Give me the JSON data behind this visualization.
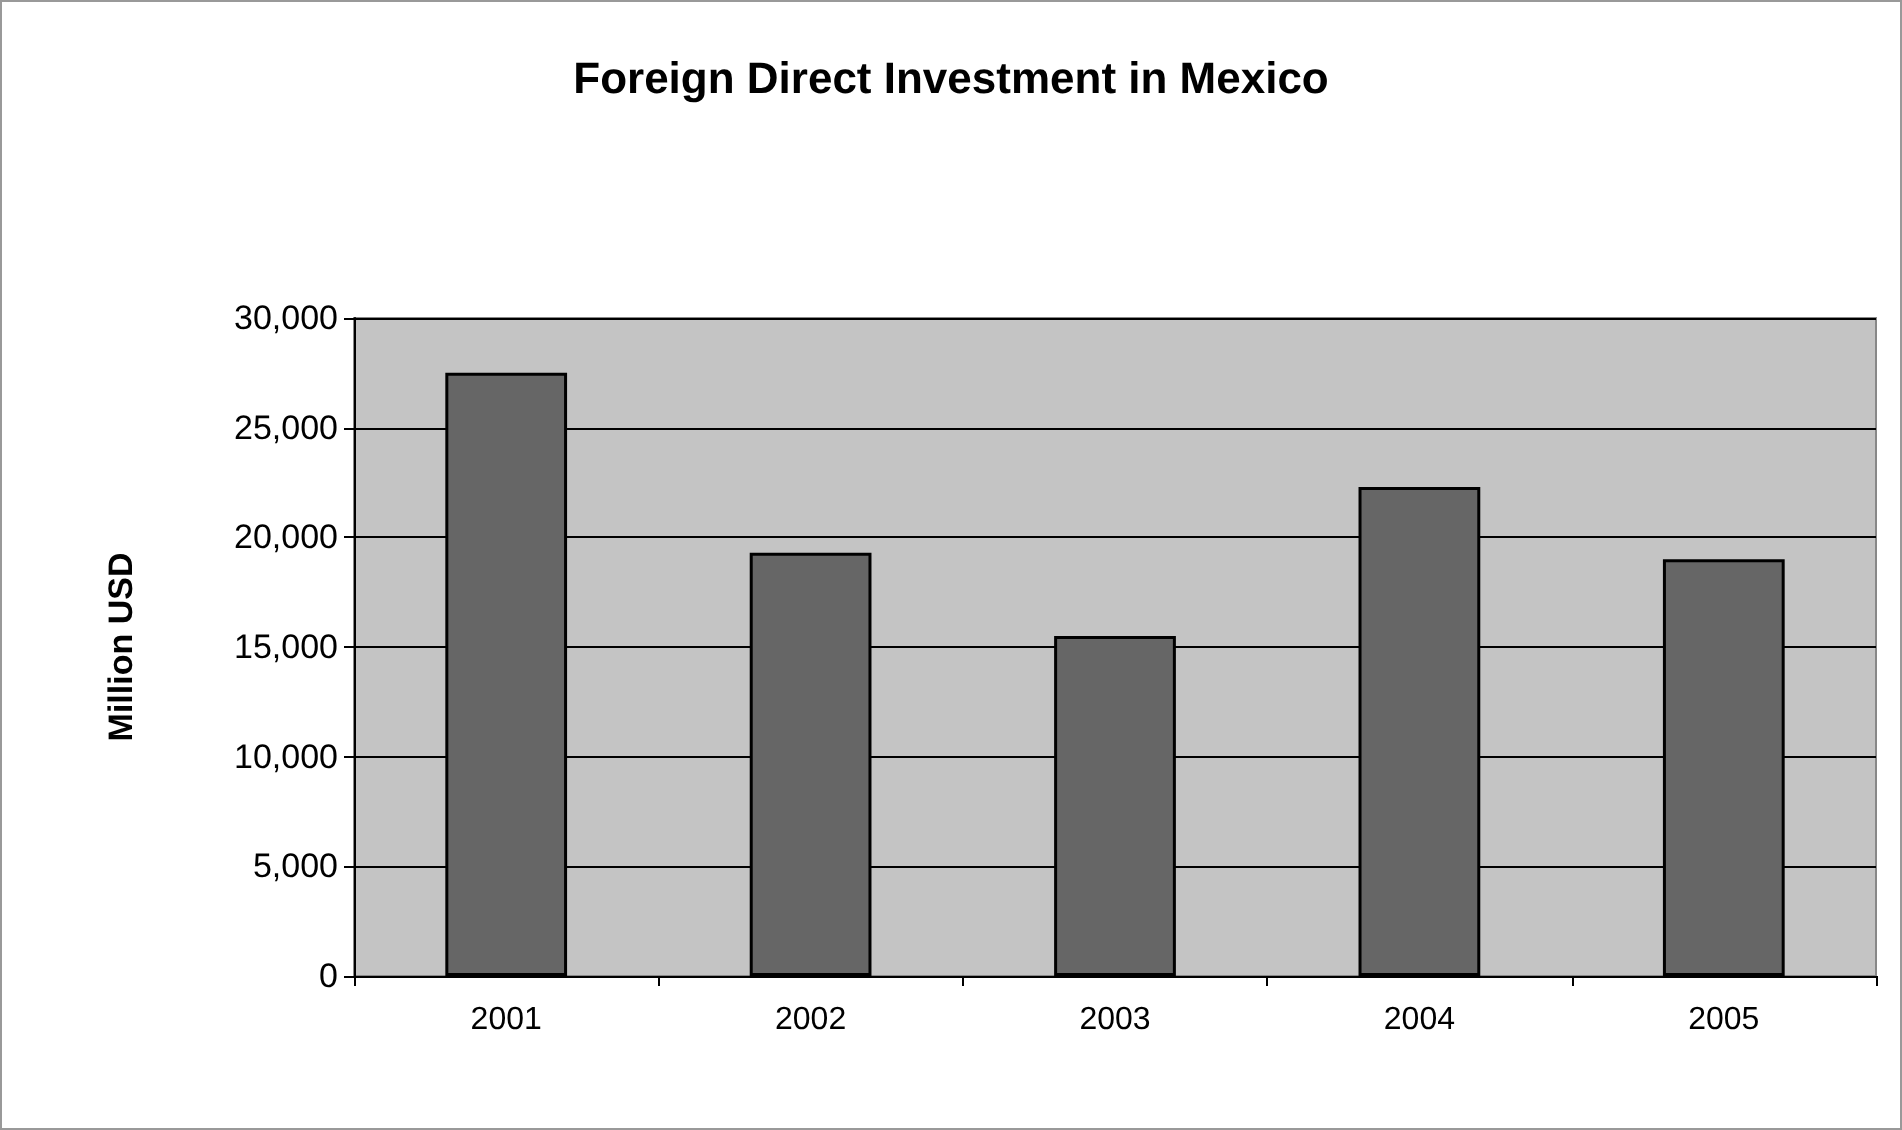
{
  "chart_data": {
    "type": "bar",
    "title": "Foreign Direct Investment in Mexico",
    "ylabel": "Million USD",
    "categories": [
      "2001",
      "2002",
      "2003",
      "2004",
      "2005"
    ],
    "values": [
      27500,
      19300,
      15500,
      22300,
      19000
    ],
    "color": "#666666",
    "ylim": [
      0,
      30000
    ],
    "yticks": [
      0,
      {
        "value": 5000,
        "label": "5,000"
      },
      {
        "value": 10000,
        "label": "10,000"
      },
      {
        "value": 15000,
        "label": "15,000"
      },
      {
        "value": 20000,
        "label": "20,000"
      },
      {
        "value": 25000,
        "label": "25,000"
      },
      {
        "value": 30000,
        "label": "30,000"
      }
    ],
    "grid": "y"
  }
}
